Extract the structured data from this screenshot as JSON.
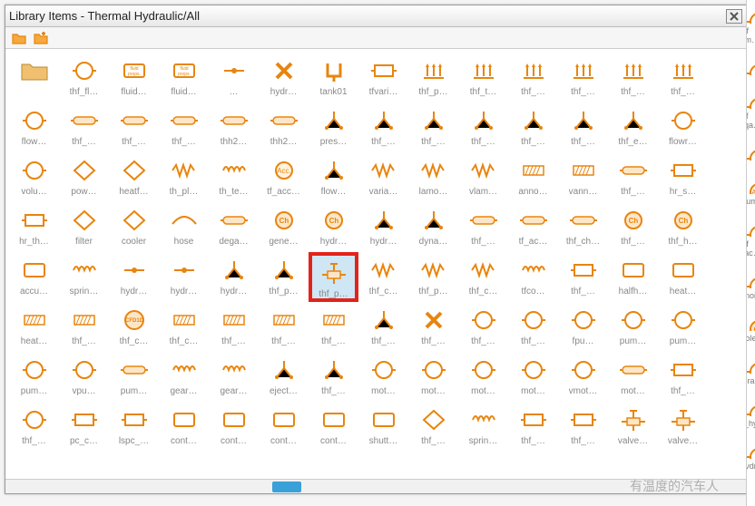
{
  "window": {
    "title": "Library Items - Thermal Hydraulic/All"
  },
  "accent_color": "#e8850e",
  "highlight_color": "#e2231a",
  "selection_bg": "#cfe6f5",
  "scroll": {
    "thumb_left_pct": 36,
    "thumb_width_pct": 4
  },
  "watermark": "有温度的汽车人",
  "icon_variants": [
    "circle",
    "rect",
    "x",
    "tank",
    "arrows",
    "pipe",
    "diamond",
    "triad",
    "dots",
    "zigzag",
    "coil",
    "valve",
    "box",
    "hose",
    "acc",
    "ch",
    "cfd"
  ],
  "rows": [
    [
      {
        "label": "",
        "glyph": "folder"
      },
      {
        "label": "thf_fl…",
        "glyph": "circle"
      },
      {
        "label": "fluid…",
        "glyph": "rect",
        "text": "fluid\nprops."
      },
      {
        "label": "fluid…",
        "glyph": "rect",
        "text": "fluid\nprops."
      },
      {
        "label": "…",
        "glyph": "dot"
      },
      {
        "label": "hydr…",
        "glyph": "x"
      },
      {
        "label": "tank01",
        "glyph": "tank"
      },
      {
        "label": "tfvari…",
        "glyph": "box"
      },
      {
        "label": "thf_p…",
        "glyph": "arrows"
      },
      {
        "label": "thf_t…",
        "glyph": "arrows"
      },
      {
        "label": "thf_…",
        "glyph": "arrows"
      },
      {
        "label": "thf_…",
        "glyph": "arrows"
      },
      {
        "label": "thf_…",
        "glyph": "arrows"
      },
      {
        "label": "thf_…",
        "glyph": "arrows"
      }
    ],
    [
      {
        "label": "flow…",
        "glyph": "circle"
      },
      {
        "label": "thf_…",
        "glyph": "pipe"
      },
      {
        "label": "thf_…",
        "glyph": "pipe"
      },
      {
        "label": "thf_…",
        "glyph": "pipe"
      },
      {
        "label": "thh2…",
        "glyph": "pipe"
      },
      {
        "label": "thh2…",
        "glyph": "pipe"
      },
      {
        "label": "pres…",
        "glyph": "triad"
      },
      {
        "label": "thf_…",
        "glyph": "triad"
      },
      {
        "label": "thf_…",
        "glyph": "triad"
      },
      {
        "label": "thf_…",
        "glyph": "triad"
      },
      {
        "label": "thf_…",
        "glyph": "triad"
      },
      {
        "label": "thf_…",
        "glyph": "triad"
      },
      {
        "label": "thf_e…",
        "glyph": "triad"
      },
      {
        "label": "flowr…",
        "glyph": "circle"
      }
    ],
    [
      {
        "label": "volu…",
        "glyph": "circle"
      },
      {
        "label": "pow…",
        "glyph": "diamond"
      },
      {
        "label": "heatf…",
        "glyph": "diamond"
      },
      {
        "label": "th_pl…",
        "glyph": "zigzag"
      },
      {
        "label": "th_te…",
        "glyph": "coil"
      },
      {
        "label": "tf_acc…",
        "glyph": "acc"
      },
      {
        "label": "flow…",
        "glyph": "triad"
      },
      {
        "label": "varia…",
        "glyph": "zigzag"
      },
      {
        "label": "lamo…",
        "glyph": "zigzag"
      },
      {
        "label": "vlam…",
        "glyph": "zigzag"
      },
      {
        "label": "anno…",
        "glyph": "hatch"
      },
      {
        "label": "vann…",
        "glyph": "hatch"
      },
      {
        "label": "thf_…",
        "glyph": "pipe"
      },
      {
        "label": "hr_s…",
        "glyph": "box"
      }
    ],
    [
      {
        "label": "hr_th…",
        "glyph": "box"
      },
      {
        "label": "filter",
        "glyph": "diamond"
      },
      {
        "label": "cooler",
        "glyph": "diamond"
      },
      {
        "label": "hose",
        "glyph": "hose"
      },
      {
        "label": "dega…",
        "glyph": "pipe"
      },
      {
        "label": "gene…",
        "glyph": "ch"
      },
      {
        "label": "hydr…",
        "glyph": "ch"
      },
      {
        "label": "hydr…",
        "glyph": "triad"
      },
      {
        "label": "dyna…",
        "glyph": "triad"
      },
      {
        "label": "thf_…",
        "glyph": "pipe"
      },
      {
        "label": "tf_ac…",
        "glyph": "pipe"
      },
      {
        "label": "thf_ch…",
        "glyph": "pipe"
      },
      {
        "label": "thf_…",
        "glyph": "ch"
      },
      {
        "label": "thf_h…",
        "glyph": "ch"
      }
    ],
    [
      {
        "label": "accu…",
        "glyph": "rect"
      },
      {
        "label": "sprin…",
        "glyph": "coil"
      },
      {
        "label": "hydr…",
        "glyph": "dot"
      },
      {
        "label": "hydr…",
        "glyph": "dot"
      },
      {
        "label": "hydr…",
        "glyph": "triad"
      },
      {
        "label": "thf_p…",
        "glyph": "triad"
      },
      {
        "label": "thf_p…",
        "glyph": "valve",
        "selected": true,
        "highlighted": true
      },
      {
        "label": "thf_c…",
        "glyph": "zigzag"
      },
      {
        "label": "thf_p…",
        "glyph": "zigzag"
      },
      {
        "label": "thf_c…",
        "glyph": "zigzag"
      },
      {
        "label": "tfco…",
        "glyph": "coil"
      },
      {
        "label": "thf_…",
        "glyph": "box"
      },
      {
        "label": "halfh…",
        "glyph": "rect"
      },
      {
        "label": "heat…",
        "glyph": "rect"
      }
    ],
    [
      {
        "label": "heat…",
        "glyph": "hatch"
      },
      {
        "label": "thf_…",
        "glyph": "hatch"
      },
      {
        "label": "thf_c…",
        "glyph": "cfd"
      },
      {
        "label": "thf_c…",
        "glyph": "hatch"
      },
      {
        "label": "thf_…",
        "glyph": "hatch"
      },
      {
        "label": "thf_…",
        "glyph": "hatch"
      },
      {
        "label": "thf_…",
        "glyph": "hatch"
      },
      {
        "label": "thf_…",
        "glyph": "triad"
      },
      {
        "label": "thf_…",
        "glyph": "x"
      },
      {
        "label": "thf_…",
        "glyph": "circle"
      },
      {
        "label": "thf_…",
        "glyph": "circle"
      },
      {
        "label": "fpu…",
        "glyph": "circle"
      },
      {
        "label": "pum…",
        "glyph": "circle"
      },
      {
        "label": "pum…",
        "glyph": "circle"
      }
    ],
    [
      {
        "label": "pum…",
        "glyph": "circle"
      },
      {
        "label": "vpu…",
        "glyph": "circle"
      },
      {
        "label": "pum…",
        "glyph": "pipe"
      },
      {
        "label": "gear…",
        "glyph": "coil"
      },
      {
        "label": "gear…",
        "glyph": "coil"
      },
      {
        "label": "eject…",
        "glyph": "triad"
      },
      {
        "label": "thf_…",
        "glyph": "triad"
      },
      {
        "label": "mot…",
        "glyph": "circle"
      },
      {
        "label": "mot…",
        "glyph": "circle"
      },
      {
        "label": "mot…",
        "glyph": "circle"
      },
      {
        "label": "mot…",
        "glyph": "circle"
      },
      {
        "label": "vmot…",
        "glyph": "circle"
      },
      {
        "label": "mot…",
        "glyph": "pipe"
      },
      {
        "label": "thf_…",
        "glyph": "box"
      }
    ],
    [
      {
        "label": "thf_…",
        "glyph": "circle"
      },
      {
        "label": "pc_c…",
        "glyph": "box"
      },
      {
        "label": "lspc_…",
        "glyph": "box"
      },
      {
        "label": "cont…",
        "glyph": "rect"
      },
      {
        "label": "cont…",
        "glyph": "rect"
      },
      {
        "label": "cont…",
        "glyph": "rect"
      },
      {
        "label": "cont…",
        "glyph": "rect"
      },
      {
        "label": "shutt…",
        "glyph": "rect"
      },
      {
        "label": "thf_…",
        "glyph": "diamond"
      },
      {
        "label": "sprin…",
        "glyph": "coil"
      },
      {
        "label": "thf_…",
        "glyph": "box"
      },
      {
        "label": "thf_…",
        "glyph": "box"
      },
      {
        "label": "valve…",
        "glyph": "valve"
      },
      {
        "label": "valve…",
        "glyph": "valve"
      }
    ]
  ],
  "rightstrip": [
    {
      "label": "if m…",
      "glyph": "circle"
    },
    {
      "label": "",
      "glyph": "circle"
    },
    {
      "label": "if qa…",
      "glyph": "circle"
    },
    {
      "label": "",
      "glyph": "circle"
    },
    {
      "label": "olum…",
      "glyph": "acc"
    },
    {
      "label": "if ac…",
      "glyph": "circle"
    },
    {
      "label": "nnor…",
      "glyph": "circle"
    },
    {
      "label": "pole…",
      "glyph": "ch"
    },
    {
      "label": "dra…",
      "glyph": "circle"
    },
    {
      "label": "if_hy…",
      "glyph": "circle"
    },
    {
      "label": "hvdr…",
      "glyph": "circle"
    }
  ]
}
